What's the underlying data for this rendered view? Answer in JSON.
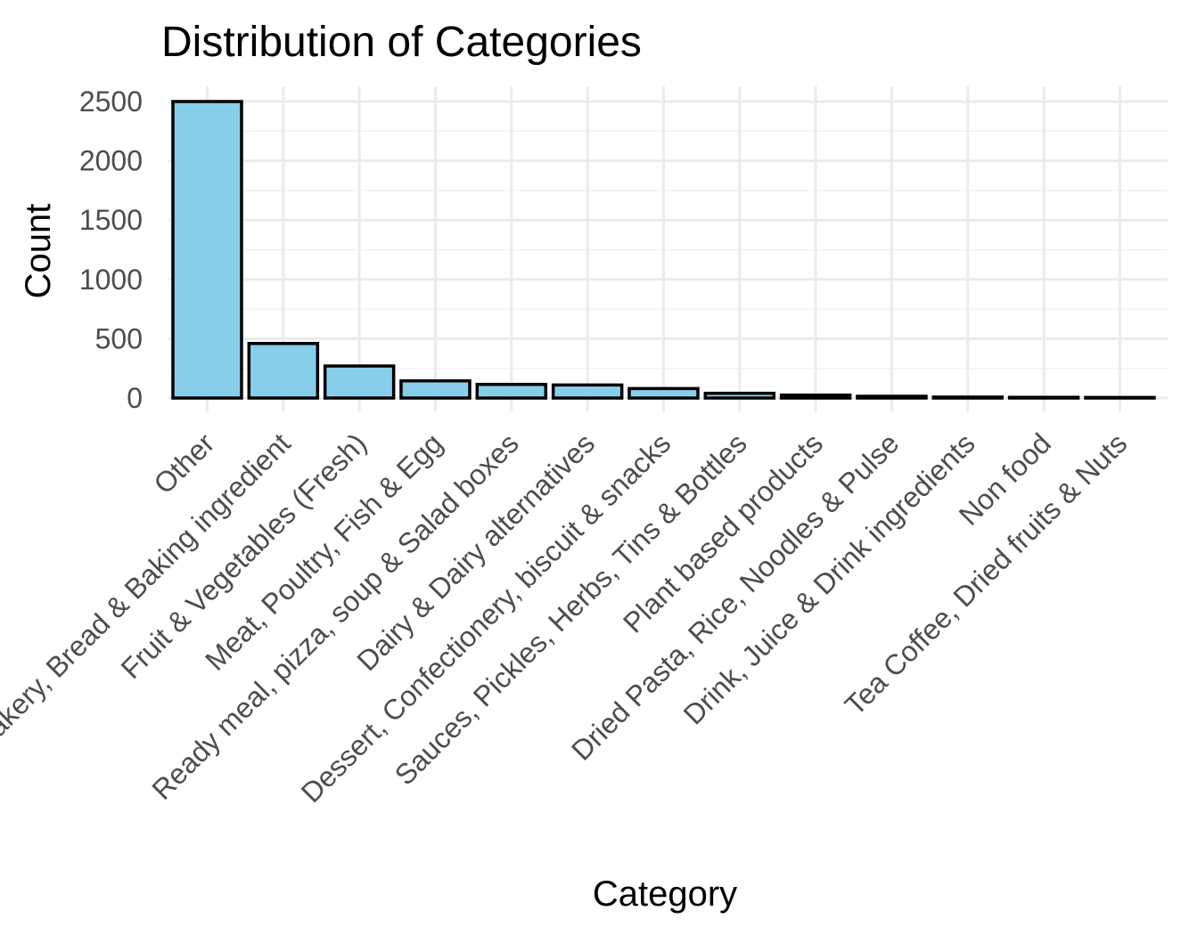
{
  "chart_data": {
    "type": "bar",
    "title": "Distribution of Categories",
    "xlabel": "Category",
    "ylabel": "Count",
    "ylim": [
      0,
      2500
    ],
    "yticks": [
      0,
      500,
      1000,
      1500,
      2000,
      2500
    ],
    "grid": true,
    "legend": "none",
    "bar_color": "#87ceeb",
    "bar_outline": "#000000",
    "categories": [
      "Other",
      "Bakery, Bread & Baking ingredient",
      "Fruit & Vegetables (Fresh)",
      "Meat, Poultry, Fish & Egg",
      "Ready meal, pizza, soup & Salad boxes",
      "Dairy & Dairy alternatives",
      "Dessert, Confectionery, biscuit & snacks",
      "Sauces, Pickles, Herbs, Tins & Bottles",
      "Plant based products",
      "Dried Pasta, Rice, Noodles & Pulse",
      "Drink, Juice & Drink ingredients",
      "Non food",
      "Tea Coffee, Dried fruits & Nuts"
    ],
    "values": [
      2500,
      460,
      270,
      145,
      115,
      110,
      80,
      40,
      25,
      15,
      8,
      6,
      5
    ]
  }
}
